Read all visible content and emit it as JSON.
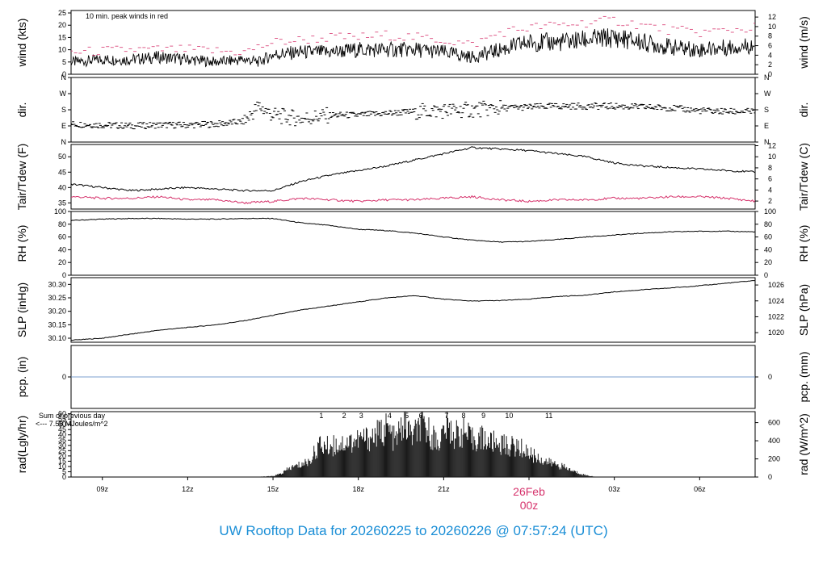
{
  "title": "UW Rooftop Data for 20260225  to  20260226 @ 07:57:24  (UTC)",
  "colors": {
    "series": "#000000",
    "dewpoint": "#d6336c",
    "precip": "#4f7fbf",
    "rad_label": "#9b30d9",
    "date_marker": "#d6336c",
    "title": "#1a8ed6"
  },
  "x_axis": {
    "ticks": [
      {
        "label": "09z",
        "hour": 9
      },
      {
        "label": "12z",
        "hour": 12
      },
      {
        "label": "15z",
        "hour": 15
      },
      {
        "label": "18z",
        "hour": 18
      },
      {
        "label": "21z",
        "hour": 21
      },
      {
        "label": "03z",
        "hour": 27
      },
      {
        "label": "06z",
        "hour": 30
      }
    ],
    "date_marker": {
      "date": "26Feb",
      "time": "00z",
      "hour": 24
    },
    "range_hours": [
      7.9,
      31.95
    ]
  },
  "chart_data": [
    {
      "type": "line",
      "panel": "wind",
      "ylabel": "wind (kts)",
      "ylabel_right": "wind (m/s)",
      "ylim": [
        0,
        26
      ],
      "yticks": [
        0,
        5,
        10,
        15,
        20,
        25
      ],
      "yticks_right": [
        0,
        2,
        4,
        6,
        8,
        10,
        12
      ],
      "annotation": "10 min. peak winds in red",
      "series": [
        {
          "color": "#000000",
          "x": [
            8,
            9,
            10,
            11,
            12,
            13,
            14,
            14.5,
            15,
            16,
            17,
            18,
            19,
            20,
            21,
            22,
            23,
            24,
            25,
            26,
            27,
            28,
            29,
            30,
            31,
            32
          ],
          "y": [
            5,
            6,
            6,
            7,
            6,
            5,
            6,
            5,
            8,
            9,
            9,
            10,
            10,
            10,
            9,
            7,
            10,
            13,
            13,
            14,
            15,
            13,
            11,
            10,
            11,
            12
          ]
        },
        {
          "color": "#d6336c",
          "x": [
            8,
            10,
            12,
            14,
            15,
            16,
            17,
            18,
            19,
            20,
            21,
            22,
            23,
            24,
            25,
            26,
            27,
            28,
            29,
            30,
            31,
            32
          ],
          "y": [
            9,
            10,
            10,
            9,
            13,
            14,
            15,
            15,
            16,
            15,
            14,
            12,
            17,
            19,
            20,
            21,
            22,
            20,
            18,
            17,
            18,
            19
          ]
        }
      ]
    },
    {
      "type": "scatter",
      "panel": "dir",
      "ylabel": "dir.",
      "ylabel_right": "dir.",
      "ylim": [
        0,
        360
      ],
      "ytick_labels": [
        "N",
        "E",
        "S",
        "W",
        "N"
      ],
      "yticks": [
        0,
        90,
        180,
        270,
        360
      ],
      "series": [
        {
          "color": "#000000",
          "x": [
            8,
            9,
            10,
            11,
            12,
            13,
            14,
            14.5,
            15,
            16,
            17,
            18,
            19,
            20,
            21,
            22,
            23,
            24,
            25,
            26,
            27,
            28,
            29,
            30,
            31,
            32
          ],
          "y": [
            100,
            95,
            90,
            95,
            95,
            100,
            115,
            200,
            150,
            130,
            150,
            150,
            160,
            170,
            175,
            180,
            190,
            195,
            200,
            200,
            200,
            195,
            190,
            175,
            170,
            170
          ]
        }
      ]
    },
    {
      "type": "line",
      "panel": "temp",
      "ylabel": "Tair/Tdew (F)",
      "ylabel_right": "Tair/Tdew (C)",
      "ylim": [
        33,
        54
      ],
      "yticks": [
        35,
        40,
        45,
        50
      ],
      "yticks_right": [
        2,
        4,
        6,
        8,
        10,
        12
      ],
      "series": [
        {
          "color": "#000000",
          "x": [
            8,
            9,
            10,
            11,
            12,
            13,
            14,
            15,
            16,
            17,
            18,
            19,
            20,
            21,
            22,
            23,
            24,
            25,
            26,
            27,
            28,
            29,
            30,
            31,
            32
          ],
          "y": [
            41,
            40,
            39,
            39.5,
            40,
            39.5,
            39,
            39,
            42,
            44,
            45.5,
            47,
            49,
            51,
            53,
            52.5,
            52,
            51,
            50,
            48,
            47,
            46.5,
            46,
            45.5,
            45
          ]
        },
        {
          "color": "#d6336c",
          "x": [
            8,
            9,
            10,
            11,
            12,
            13,
            14,
            15,
            16,
            17,
            18,
            19,
            20,
            21,
            22,
            23,
            24,
            25,
            26,
            27,
            28,
            29,
            30,
            31,
            32
          ],
          "y": [
            37,
            36.5,
            36.5,
            37,
            36,
            36,
            35,
            35.5,
            36.5,
            36,
            35.5,
            36,
            36,
            36.5,
            37,
            36,
            35.5,
            36,
            36,
            36.5,
            36.5,
            37,
            37,
            36.5,
            35.5
          ]
        }
      ]
    },
    {
      "type": "line",
      "panel": "rh",
      "ylabel": "RH (%)",
      "ylabel_right": "RH (%)",
      "ylim": [
        0,
        100
      ],
      "yticks": [
        0,
        20,
        40,
        60,
        80,
        100
      ],
      "series": [
        {
          "color": "#000000",
          "x": [
            8,
            9,
            10,
            11,
            12,
            13,
            14,
            15,
            16,
            17,
            18,
            19,
            20,
            21,
            22,
            23,
            24,
            25,
            26,
            27,
            28,
            29,
            30,
            31,
            32
          ],
          "y": [
            86,
            88,
            89,
            89,
            88,
            88,
            89,
            89,
            82,
            78,
            72,
            70,
            66,
            60,
            55,
            52,
            53,
            56,
            60,
            63,
            66,
            68,
            69,
            69,
            68
          ]
        }
      ]
    },
    {
      "type": "line",
      "panel": "slp",
      "ylabel": "SLP (inHg)",
      "ylabel_right": "SLP (hPa)",
      "ylim": [
        30.085,
        30.325
      ],
      "yticks": [
        30.1,
        30.15,
        30.2,
        30.25,
        30.3
      ],
      "ytick_labels": [
        "30.10",
        "30.15",
        "30.20",
        "30.25",
        "30.30"
      ],
      "yticks_right_hpa": [
        1020,
        1022,
        1024,
        1026
      ],
      "series": [
        {
          "color": "#000000",
          "x": [
            8,
            9,
            10,
            11,
            12,
            13,
            14,
            15,
            16,
            17,
            18,
            19,
            20,
            21,
            22,
            23,
            24,
            25,
            26,
            27,
            28,
            29,
            30,
            31,
            32
          ],
          "y": [
            30.093,
            30.1,
            30.115,
            30.13,
            30.14,
            30.15,
            30.165,
            30.185,
            30.205,
            30.22,
            30.235,
            30.25,
            30.258,
            30.245,
            30.238,
            30.24,
            30.245,
            30.255,
            30.26,
            30.272,
            30.28,
            30.287,
            30.295,
            30.305,
            30.315
          ]
        }
      ]
    },
    {
      "type": "line",
      "panel": "pcp",
      "ylabel": "pcp. (in)",
      "ylabel_right": "pcp. (mm)",
      "ylim": [
        -1,
        1
      ],
      "yticks": [
        0
      ],
      "yticks_right": [
        0
      ],
      "series": [
        {
          "color": "#4f7fbf",
          "x": [
            7.9,
            31.95
          ],
          "y": [
            0,
            0
          ]
        }
      ]
    },
    {
      "type": "bar",
      "panel": "rad",
      "ylabel": "rad(Lgly/hr)",
      "ylabel_right": "rad (W/m^2)",
      "ylim": [
        0,
        62
      ],
      "yticks": [
        0,
        5,
        10,
        15,
        20,
        25,
        30,
        35,
        40,
        45,
        50,
        55,
        60
      ],
      "yticks_right": [
        0,
        200,
        400,
        600
      ],
      "sum_label": "Sum of previous day",
      "sum_value": "<--- 7.58 MJoules/m^2",
      "hour_labels": [
        "1",
        "2",
        "3",
        "4",
        "5",
        "6",
        "7",
        "8",
        "9",
        "10",
        "11"
      ],
      "hour_label_hours": [
        16.7,
        17.5,
        18.1,
        19.1,
        19.7,
        20.2,
        21.1,
        21.7,
        22.4,
        23.3,
        24.7
      ],
      "series": [
        {
          "color": "#1a1a1a",
          "x": [
            14.6,
            15.0,
            15.3,
            15.6,
            16.0,
            16.3,
            16.6,
            16.9,
            17.2,
            17.5,
            17.8,
            18.1,
            18.4,
            18.7,
            19.0,
            19.3,
            19.6,
            19.9,
            20.2,
            20.5,
            20.8,
            21.1,
            21.4,
            21.7,
            22.0,
            22.3,
            22.6,
            22.9,
            23.2,
            23.5,
            23.8,
            24.1,
            24.4,
            24.7,
            25.0,
            25.3,
            25.6,
            26.0,
            26.3
          ],
          "y": [
            0.5,
            1,
            4,
            10,
            14,
            18,
            35,
            34,
            36,
            38,
            40,
            42,
            44,
            48,
            55,
            40,
            60,
            45,
            56,
            50,
            38,
            56,
            47,
            50,
            41,
            44,
            39,
            38,
            35,
            34,
            31,
            25,
            20,
            16,
            14,
            10,
            6,
            2,
            0.5
          ]
        }
      ]
    }
  ]
}
